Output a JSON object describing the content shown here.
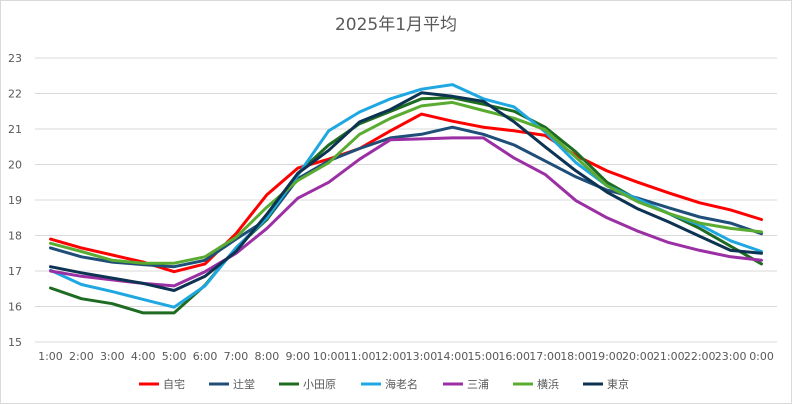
{
  "chart_data": {
    "type": "line",
    "title": "2025年1月平均",
    "xlabel": "",
    "ylabel": "",
    "ylim": [
      15,
      23
    ],
    "yticks": [
      15,
      16,
      17,
      18,
      19,
      20,
      21,
      22,
      23
    ],
    "grid": true,
    "legend_position": "bottom",
    "categories": [
      "1:00",
      "2:00",
      "3:00",
      "4:00",
      "5:00",
      "6:00",
      "7:00",
      "8:00",
      "9:00",
      "10:00",
      "11:00",
      "12:00",
      "13:00",
      "14:00",
      "15:00",
      "16:00",
      "17:00",
      "18:00",
      "19:00",
      "20:00",
      "21:00",
      "22:00",
      "23:00",
      "0:00"
    ],
    "series": [
      {
        "name": "自宅",
        "color": "#ff0000",
        "values": [
          17.9,
          17.65,
          17.45,
          17.25,
          16.98,
          17.2,
          18.05,
          19.15,
          19.9,
          20.15,
          20.45,
          20.95,
          21.42,
          21.22,
          21.05,
          20.95,
          20.82,
          20.25,
          19.82,
          19.5,
          19.2,
          18.92,
          18.72,
          18.45
        ]
      },
      {
        "name": "辻堂",
        "color": "#1f4e79",
        "values": [
          17.65,
          17.4,
          17.25,
          17.18,
          17.12,
          17.3,
          17.9,
          18.45,
          19.6,
          20.1,
          20.45,
          20.75,
          20.85,
          21.05,
          20.85,
          20.55,
          20.1,
          19.65,
          19.28,
          19.05,
          18.78,
          18.52,
          18.35,
          18.05
        ]
      },
      {
        "name": "小田原",
        "color": "#1e6b22",
        "values": [
          16.52,
          16.22,
          16.08,
          15.82,
          15.82,
          16.6,
          17.65,
          18.45,
          19.75,
          20.55,
          21.15,
          21.5,
          21.85,
          21.88,
          21.7,
          21.5,
          21.05,
          20.35,
          19.5,
          19.0,
          18.62,
          18.2,
          17.7,
          17.2
        ]
      },
      {
        "name": "海老名",
        "color": "#1ea7e1",
        "values": [
          17.02,
          16.62,
          16.42,
          16.2,
          15.98,
          16.58,
          17.65,
          18.5,
          19.7,
          20.95,
          21.48,
          21.85,
          22.12,
          22.25,
          21.85,
          21.62,
          20.92,
          20.05,
          19.4,
          19.02,
          18.62,
          18.3,
          17.85,
          17.55
        ]
      },
      {
        "name": "三浦",
        "color": "#9b2fa4",
        "values": [
          17.0,
          16.85,
          16.75,
          16.65,
          16.58,
          16.98,
          17.5,
          18.2,
          19.05,
          19.5,
          20.15,
          20.7,
          20.72,
          20.75,
          20.75,
          20.18,
          19.72,
          18.98,
          18.5,
          18.12,
          17.8,
          17.58,
          17.4,
          17.3
        ]
      },
      {
        "name": "横浜",
        "color": "#5aab32",
        "values": [
          17.78,
          17.55,
          17.3,
          17.22,
          17.22,
          17.4,
          17.95,
          18.8,
          19.55,
          20.05,
          20.85,
          21.3,
          21.65,
          21.75,
          21.52,
          21.3,
          20.98,
          20.2,
          19.4,
          18.95,
          18.62,
          18.35,
          18.2,
          18.1
        ]
      },
      {
        "name": "東京",
        "color": "#0d3352",
        "values": [
          17.12,
          16.95,
          16.8,
          16.65,
          16.45,
          16.85,
          17.55,
          18.6,
          19.75,
          20.4,
          21.2,
          21.55,
          22.02,
          21.92,
          21.78,
          21.2,
          20.5,
          19.82,
          19.22,
          18.75,
          18.38,
          17.98,
          17.58,
          17.5
        ]
      }
    ]
  }
}
